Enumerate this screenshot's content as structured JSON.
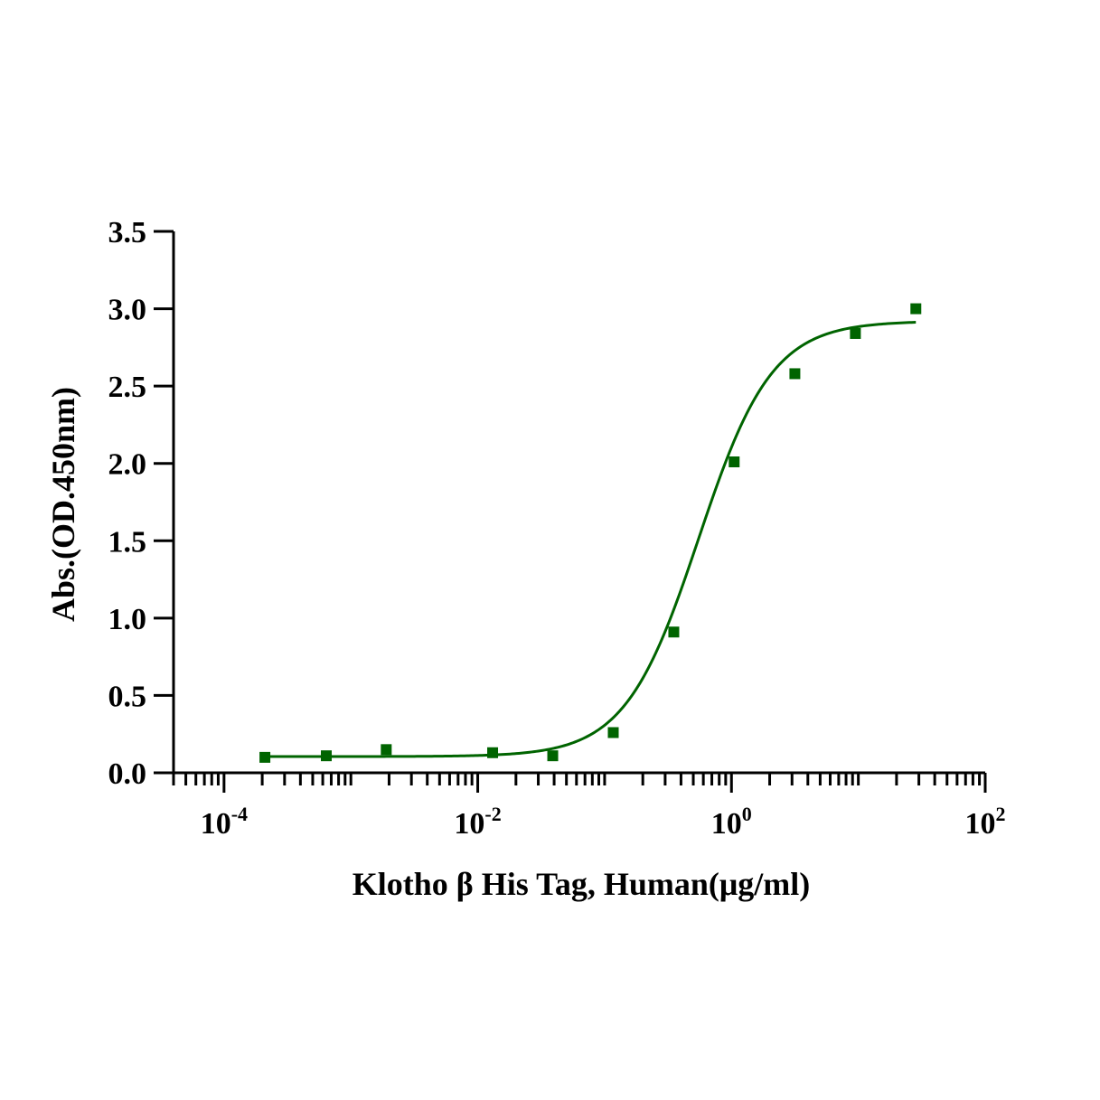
{
  "chart_data": {
    "type": "scatter",
    "title": "",
    "xlabel": "Klotho β His Tag, Human(μg/ml)",
    "ylabel": "Abs.(OD.450nm)",
    "x_scale": "log10",
    "xlim": [
      4e-05,
      100
    ],
    "ylim": [
      0,
      3.5
    ],
    "y_ticks": [
      "0.0",
      "0.5",
      "1.0",
      "1.5",
      "2.0",
      "2.5",
      "3.0",
      "3.5"
    ],
    "x_ticks": [
      {
        "value": 0.0001,
        "base": "10",
        "exp": "-4"
      },
      {
        "value": 0.01,
        "base": "10",
        "exp": "-2"
      },
      {
        "value": 1,
        "base": "10",
        "exp": "0"
      },
      {
        "value": 100,
        "base": "10",
        "exp": "2"
      }
    ],
    "marker_color": "#006400",
    "curve_color": "#006400",
    "series": [
      {
        "x": [
          0.00021,
          0.00064,
          0.0019,
          0.0131,
          0.039,
          0.117,
          0.351,
          1.05,
          3.16,
          9.48,
          28.4
        ],
        "y": [
          0.1,
          0.11,
          0.15,
          0.13,
          0.11,
          0.26,
          0.91,
          2.01,
          2.58,
          2.84,
          3.0
        ]
      }
    ],
    "fit": {
      "model": "4PL",
      "bottom": 0.105,
      "top": 2.92,
      "ec50": 0.55,
      "hill": 1.5,
      "x_range": [
        0.00021,
        28.4
      ]
    }
  }
}
